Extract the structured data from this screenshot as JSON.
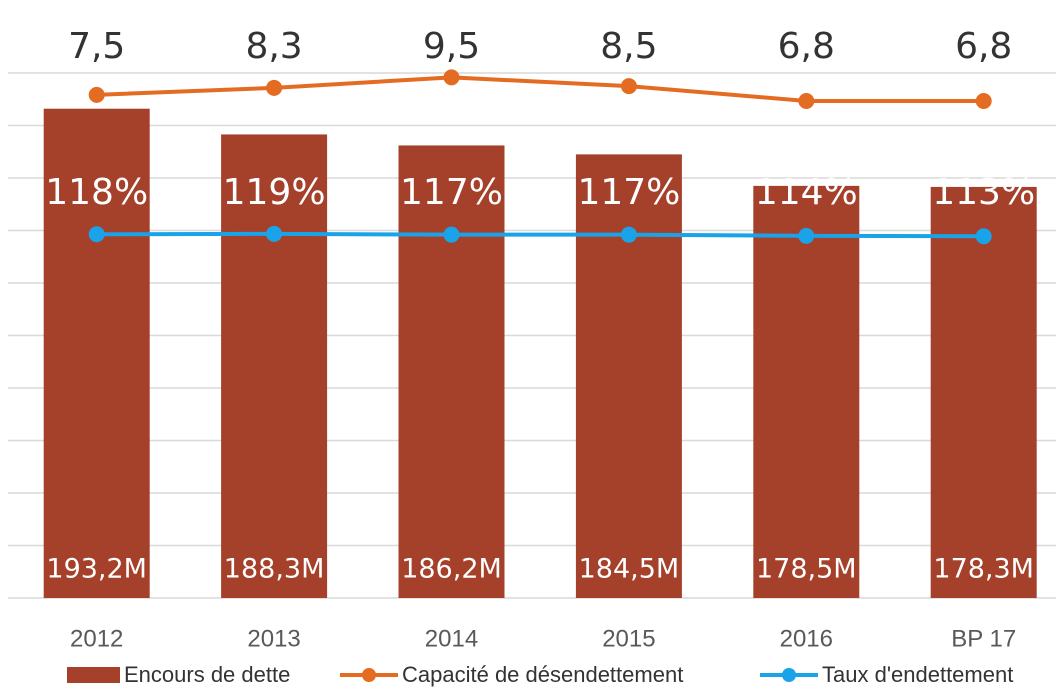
{
  "chart_data": {
    "type": "bar",
    "categories": [
      "2012",
      "2013",
      "2014",
      "2015",
      "2016",
      "BP 17"
    ],
    "series": [
      {
        "name": "Encours de dette",
        "type": "bar",
        "color": "#a5402a",
        "values": [
          193.2,
          188.3,
          186.2,
          184.5,
          178.5,
          178.3
        ],
        "value_labels": [
          "193,2M",
          "188,3M",
          "186,2M",
          "184,5M",
          "178,5M",
          "178,3M"
        ]
      },
      {
        "name": "Capacité de désendettement",
        "type": "line",
        "axis": "y2",
        "color": "#e46c22",
        "values": [
          7.5,
          8.3,
          9.5,
          8.5,
          6.8,
          6.8
        ],
        "value_labels": [
          "7,5",
          "8,3",
          "9,5",
          "8,5",
          "6,8",
          "6,8"
        ]
      },
      {
        "name": "Taux d'endettement",
        "type": "line",
        "axis": "y3",
        "color": "#1aa3e8",
        "values": [
          118,
          119,
          117,
          117,
          114,
          113
        ],
        "value_labels": [
          "118%",
          "119%",
          "117%",
          "117%",
          "114%",
          "113%"
        ]
      }
    ],
    "ylim": [
      100,
      200
    ],
    "yticks": [
      100,
      110,
      120,
      130,
      140,
      150,
      160,
      170,
      180,
      190,
      200
    ],
    "y2lim": [
      -50,
      10
    ],
    "y3lim": [
      -800,
      525
    ],
    "grid": true,
    "legend": "bottom"
  }
}
